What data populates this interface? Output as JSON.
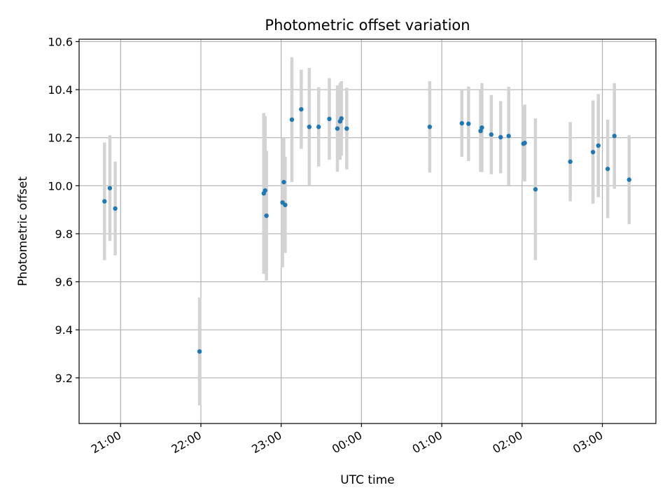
{
  "chart_data": {
    "type": "scatter",
    "title": "Photometric offset variation",
    "xlabel": "UTC time",
    "ylabel": "Photometric offset",
    "x_unit": "UTC time (HH:MM)",
    "x_ticks": [
      "21:00",
      "22:00",
      "23:00",
      "00:00",
      "01:00",
      "02:00",
      "03:00"
    ],
    "x_tick_values": [
      "21:00",
      "22:00",
      "23:00",
      "24:00",
      "25:00",
      "26:00",
      "27:00"
    ],
    "y_ticks": [
      "9.2",
      "9.4",
      "9.6",
      "9.8",
      "10.0",
      "10.2",
      "10.4",
      "10.6"
    ],
    "y_tick_values": [
      9.2,
      9.4,
      9.6,
      9.8,
      10.0,
      10.2,
      10.4,
      10.6
    ],
    "xlim": [
      "20:29",
      "27:40"
    ],
    "ylim": [
      9.01,
      10.61
    ],
    "grid": true,
    "colors": {
      "point": "#1f77b4",
      "errorbar": "#d3d3d3",
      "grid": "#b0b0b0"
    },
    "points": [
      {
        "x": "20:48",
        "y": 9.935,
        "err": 0.245
      },
      {
        "x": "20:52",
        "y": 9.99,
        "err": 0.22
      },
      {
        "x": "20:56",
        "y": 9.905,
        "err": 0.195
      },
      {
        "x": "21:59",
        "y": 9.31,
        "err": 0.225
      },
      {
        "x": "22:47",
        "y": 9.968,
        "err": 0.335
      },
      {
        "x": "22:48",
        "y": 9.98,
        "err": 0.31
      },
      {
        "x": "22:49",
        "y": 9.875,
        "err": 0.27
      },
      {
        "x": "23:01",
        "y": 9.93,
        "err": 0.27
      },
      {
        "x": "23:02",
        "y": 10.015,
        "err": 0.185
      },
      {
        "x": "23:03",
        "y": 9.92,
        "err": 0.2
      },
      {
        "x": "23:08",
        "y": 10.275,
        "err": 0.26
      },
      {
        "x": "23:15",
        "y": 10.318,
        "err": 0.165
      },
      {
        "x": "23:21",
        "y": 10.245,
        "err": 0.245
      },
      {
        "x": "23:28",
        "y": 10.245,
        "err": 0.165
      },
      {
        "x": "23:36",
        "y": 10.278,
        "err": 0.17
      },
      {
        "x": "23:42",
        "y": 10.238,
        "err": 0.18
      },
      {
        "x": "23:44",
        "y": 10.268,
        "err": 0.16
      },
      {
        "x": "23:45",
        "y": 10.28,
        "err": 0.155
      },
      {
        "x": "23:49",
        "y": 10.238,
        "err": 0.17
      },
      {
        "x": "24:51",
        "y": 10.245,
        "err": 0.19
      },
      {
        "x": "25:15",
        "y": 10.26,
        "err": 0.14
      },
      {
        "x": "25:20",
        "y": 10.258,
        "err": 0.155
      },
      {
        "x": "25:29",
        "y": 10.228,
        "err": 0.17
      },
      {
        "x": "25:30",
        "y": 10.242,
        "err": 0.185
      },
      {
        "x": "25:37",
        "y": 10.213,
        "err": 0.165
      },
      {
        "x": "25:44",
        "y": 10.202,
        "err": 0.15
      },
      {
        "x": "25:50",
        "y": 10.207,
        "err": 0.205
      },
      {
        "x": "26:01",
        "y": 10.175,
        "err": 0.155
      },
      {
        "x": "26:02",
        "y": 10.178,
        "err": 0.16
      },
      {
        "x": "26:10",
        "y": 9.985,
        "err": 0.295
      },
      {
        "x": "26:36",
        "y": 10.1,
        "err": 0.165
      },
      {
        "x": "26:53",
        "y": 10.14,
        "err": 0.215
      },
      {
        "x": "26:57",
        "y": 10.167,
        "err": 0.215
      },
      {
        "x": "27:04",
        "y": 10.07,
        "err": 0.205
      },
      {
        "x": "27:09",
        "y": 10.207,
        "err": 0.22
      },
      {
        "x": "27:20",
        "y": 10.025,
        "err": 0.185
      }
    ]
  }
}
